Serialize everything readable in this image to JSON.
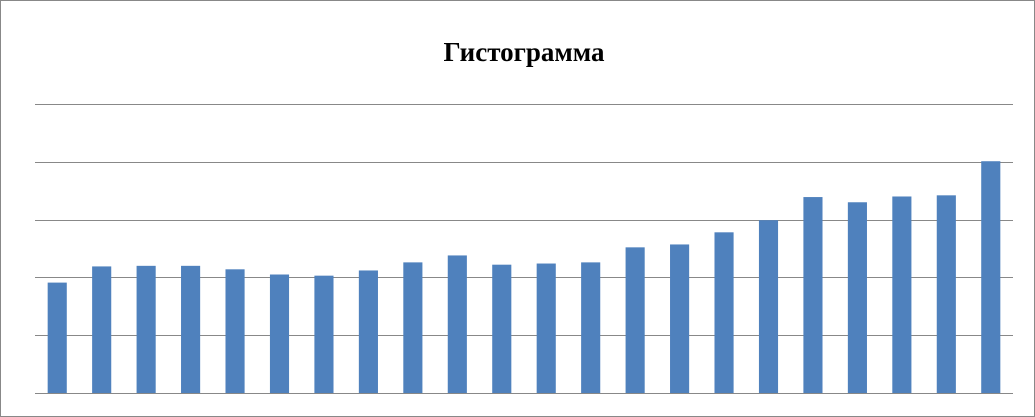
{
  "chart_data": {
    "type": "bar",
    "title": "Гистограмма",
    "categories": [
      null,
      null,
      null,
      null,
      null,
      null,
      null,
      null,
      null,
      null,
      null,
      null,
      null,
      null,
      null,
      null,
      null,
      null,
      null,
      null,
      null,
      null
    ],
    "values": [
      1.91,
      2.19,
      2.2,
      2.2,
      2.14,
      2.05,
      2.03,
      2.12,
      2.26,
      2.38,
      2.22,
      2.24,
      2.26,
      2.52,
      2.57,
      2.78,
      2.99,
      3.39,
      3.3,
      3.4,
      3.42,
      4.01
    ],
    "color": "#4f81bd",
    "ylim": [
      0,
      5
    ],
    "yticks": [
      0,
      1,
      2,
      3,
      4,
      5
    ],
    "grid": true
  }
}
